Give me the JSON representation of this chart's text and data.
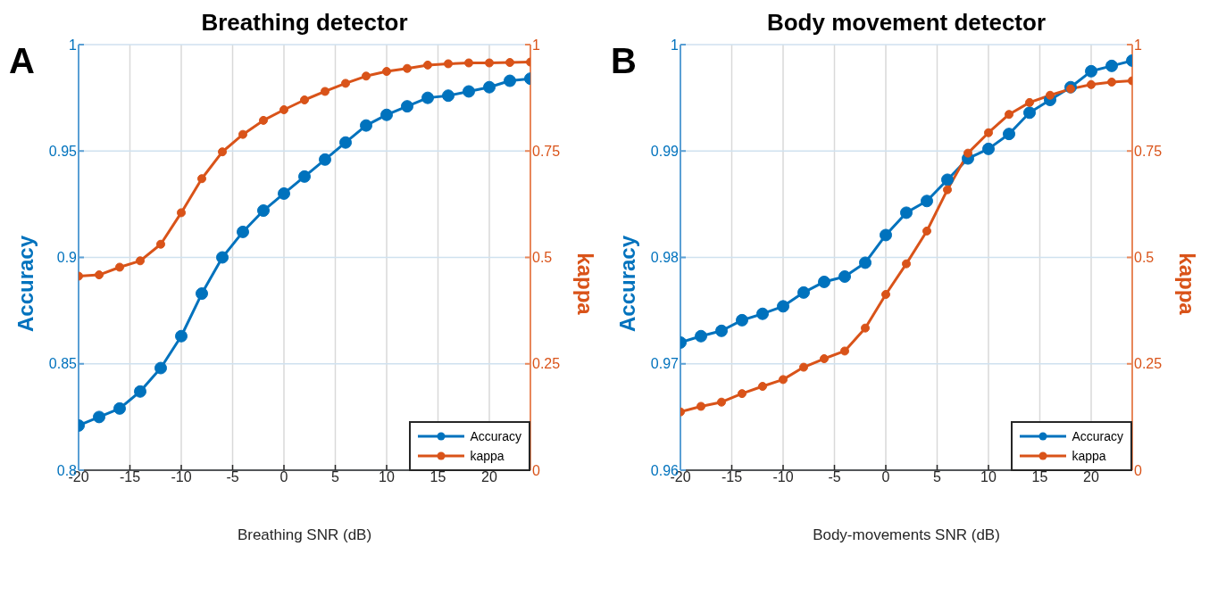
{
  "chart_data": [
    {
      "type": "line",
      "title": "Breathing detector",
      "xlabel": "Breathing SNR (dB)",
      "ylabel": "Accuracy",
      "y2label": "kappa",
      "annotations": [
        "A"
      ],
      "x": [
        -20,
        -18,
        -16,
        -14,
        -12,
        -10,
        -8,
        -6,
        -4,
        -2,
        0,
        2,
        4,
        6,
        8,
        10,
        12,
        14,
        16,
        18,
        20,
        22,
        24
      ],
      "series": [
        {
          "name": "Accuracy",
          "color": "#0072bd",
          "values": [
            0.821,
            0.825,
            0.829,
            0.837,
            0.848,
            0.863,
            0.883,
            0.9,
            0.912,
            0.922,
            0.93,
            0.938,
            0.946,
            0.954,
            0.962,
            0.967,
            0.971,
            0.975,
            0.976,
            0.978,
            0.98,
            0.983,
            0.984
          ]
        },
        {
          "name": "kappa",
          "color": "#d95319",
          "axis": "y2",
          "values": [
            0.456,
            0.459,
            0.477,
            0.492,
            0.531,
            0.605,
            0.685,
            0.748,
            0.789,
            0.822,
            0.847,
            0.87,
            0.89,
            0.909,
            0.926,
            0.937,
            0.944,
            0.952,
            0.955,
            0.957,
            0.957,
            0.958,
            0.959
          ]
        }
      ],
      "xlim": [
        -20,
        24
      ],
      "xticks": [
        -20,
        -15,
        -10,
        -5,
        0,
        5,
        10,
        15,
        20
      ],
      "ylim": [
        0.8,
        1
      ],
      "yticks": [
        0.8,
        0.85,
        0.9,
        0.95,
        1
      ],
      "y2lim": [
        0,
        1
      ],
      "y2ticks": [
        0,
        0.25,
        0.5,
        0.75,
        1
      ],
      "grid": true,
      "legend": "bottom right",
      "marker": "circle",
      "line_style": "solid"
    },
    {
      "type": "line",
      "title": "Body movement detector",
      "xlabel": "Body-movements SNR (dB)",
      "ylabel": "Accuracy",
      "y2label": "kappa",
      "annotations": [
        "B"
      ],
      "x": [
        -20,
        -18,
        -16,
        -14,
        -12,
        -10,
        -8,
        -6,
        -4,
        -2,
        0,
        2,
        4,
        6,
        8,
        10,
        12,
        14,
        16,
        18,
        20,
        22,
        24
      ],
      "series": [
        {
          "name": "Accuracy",
          "color": "#0072bd",
          "values": [
            0.972,
            0.9726,
            0.9731,
            0.9741,
            0.9747,
            0.9754,
            0.9767,
            0.9777,
            0.9782,
            0.9795,
            0.9821,
            0.9842,
            0.9853,
            0.9873,
            0.9893,
            0.9902,
            0.9916,
            0.9936,
            0.9948,
            0.996,
            0.9975,
            0.998,
            0.9985
          ]
        },
        {
          "name": "kappa",
          "color": "#d95319",
          "axis": "y2",
          "values": [
            0.137,
            0.15,
            0.16,
            0.18,
            0.197,
            0.213,
            0.242,
            0.262,
            0.28,
            0.334,
            0.413,
            0.485,
            0.562,
            0.659,
            0.745,
            0.793,
            0.836,
            0.864,
            0.881,
            0.896,
            0.906,
            0.912,
            0.915
          ]
        }
      ],
      "xlim": [
        -20,
        24
      ],
      "xticks": [
        -20,
        -15,
        -10,
        -5,
        0,
        5,
        10,
        15,
        20
      ],
      "ylim": [
        0.96,
        1
      ],
      "yticks": [
        0.96,
        0.97,
        0.98,
        0.99,
        1
      ],
      "y2lim": [
        0,
        1
      ],
      "y2ticks": [
        0,
        0.25,
        0.5,
        0.75,
        1
      ],
      "grid": true,
      "legend": "bottom right",
      "marker": "circle",
      "line_style": "solid"
    }
  ]
}
